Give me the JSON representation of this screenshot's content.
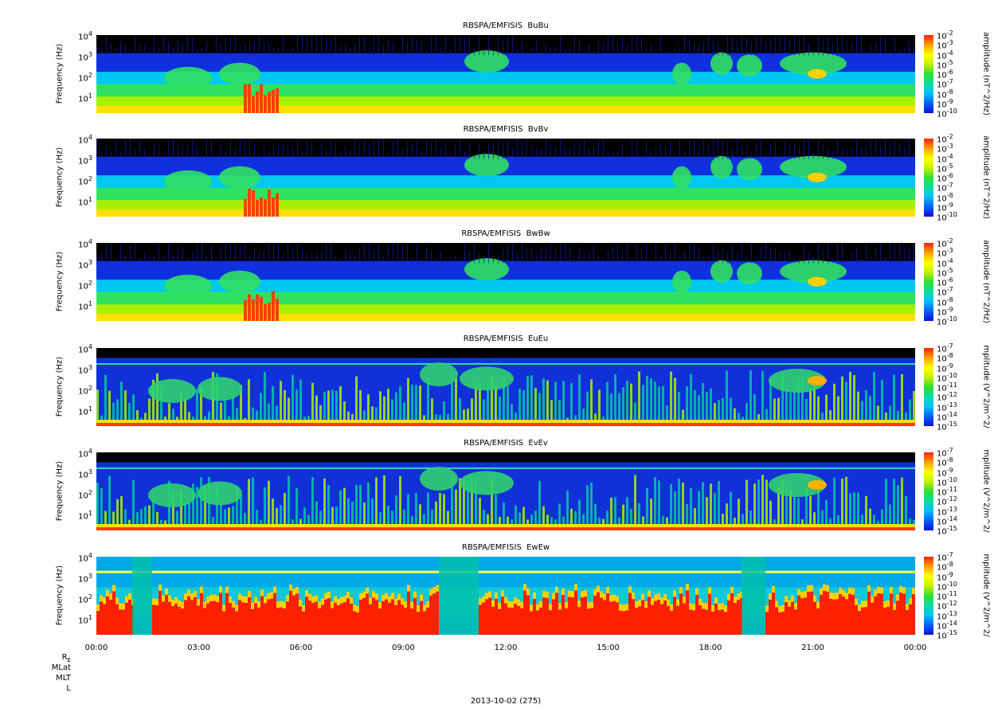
{
  "chart_data": {
    "type": "heatmap",
    "date_label": "2013-10-02 (275)",
    "x_axis": {
      "ticks": [
        "00:00",
        "03:00",
        "06:00",
        "09:00",
        "12:00",
        "15:00",
        "18:00",
        "21:00",
        "00:00"
      ],
      "range_hours": [
        0,
        24
      ]
    },
    "ephemeris_labels": [
      "R_E",
      "MLat",
      "MLT",
      "L"
    ],
    "y_axis": {
      "label": "Frequency (Hz)",
      "scale": "log",
      "tick_exponents": [
        "1",
        "2",
        "3",
        "4"
      ],
      "range_hz": [
        2,
        12000
      ]
    },
    "colormap": [
      "#1010d8",
      "#0060ff",
      "#00c0ff",
      "#00e0a0",
      "#30e030",
      "#c8f000",
      "#ffff00",
      "#ffa000",
      "#ff2000"
    ],
    "panels": [
      {
        "title": "RBSPA/EMFISIS  BuBu",
        "colorbar_label": "amplitude (nT^2/Hz)",
        "colorbar_exponents": [
          "-2",
          "-3",
          "-4",
          "-5",
          "-6",
          "-7",
          "-8",
          "-9",
          "-10"
        ],
        "kind": "B"
      },
      {
        "title": "RBSPA/EMFISIS  BvBv",
        "colorbar_label": "amplitude (nT^2/Hz)",
        "colorbar_exponents": [
          "-2",
          "-3",
          "-4",
          "-5",
          "-6",
          "-7",
          "-8",
          "-9",
          "-10"
        ],
        "kind": "B"
      },
      {
        "title": "RBSPA/EMFISIS  BwBw",
        "colorbar_label": "amplitude (nT^2/Hz)",
        "colorbar_exponents": [
          "-2",
          "-3",
          "-4",
          "-5",
          "-6",
          "-7",
          "-8",
          "-9",
          "-10"
        ],
        "kind": "B"
      },
      {
        "title": "RBSPA/EMFISIS  EuEu",
        "colorbar_label": "mplitude (V^2/m^2/",
        "colorbar_exponents": [
          "-7",
          "-8",
          "-9",
          "-10",
          "-11",
          "-12",
          "-13",
          "-14",
          "-15"
        ],
        "kind": "E"
      },
      {
        "title": "RBSPA/EMFISIS  EvEv",
        "colorbar_label": "mplitude (V^2/m^2/",
        "colorbar_exponents": [
          "-7",
          "-8",
          "-9",
          "-10",
          "-11",
          "-12",
          "-13",
          "-14",
          "-15"
        ],
        "kind": "E"
      },
      {
        "title": "RBSPA/EMFISIS  EwEw",
        "colorbar_label": "mplitude (V^2/m^2/",
        "colorbar_exponents": [
          "-7",
          "-8",
          "-9",
          "-10",
          "-11",
          "-12",
          "-13",
          "-14",
          "-15"
        ],
        "kind": "Ew"
      }
    ]
  }
}
